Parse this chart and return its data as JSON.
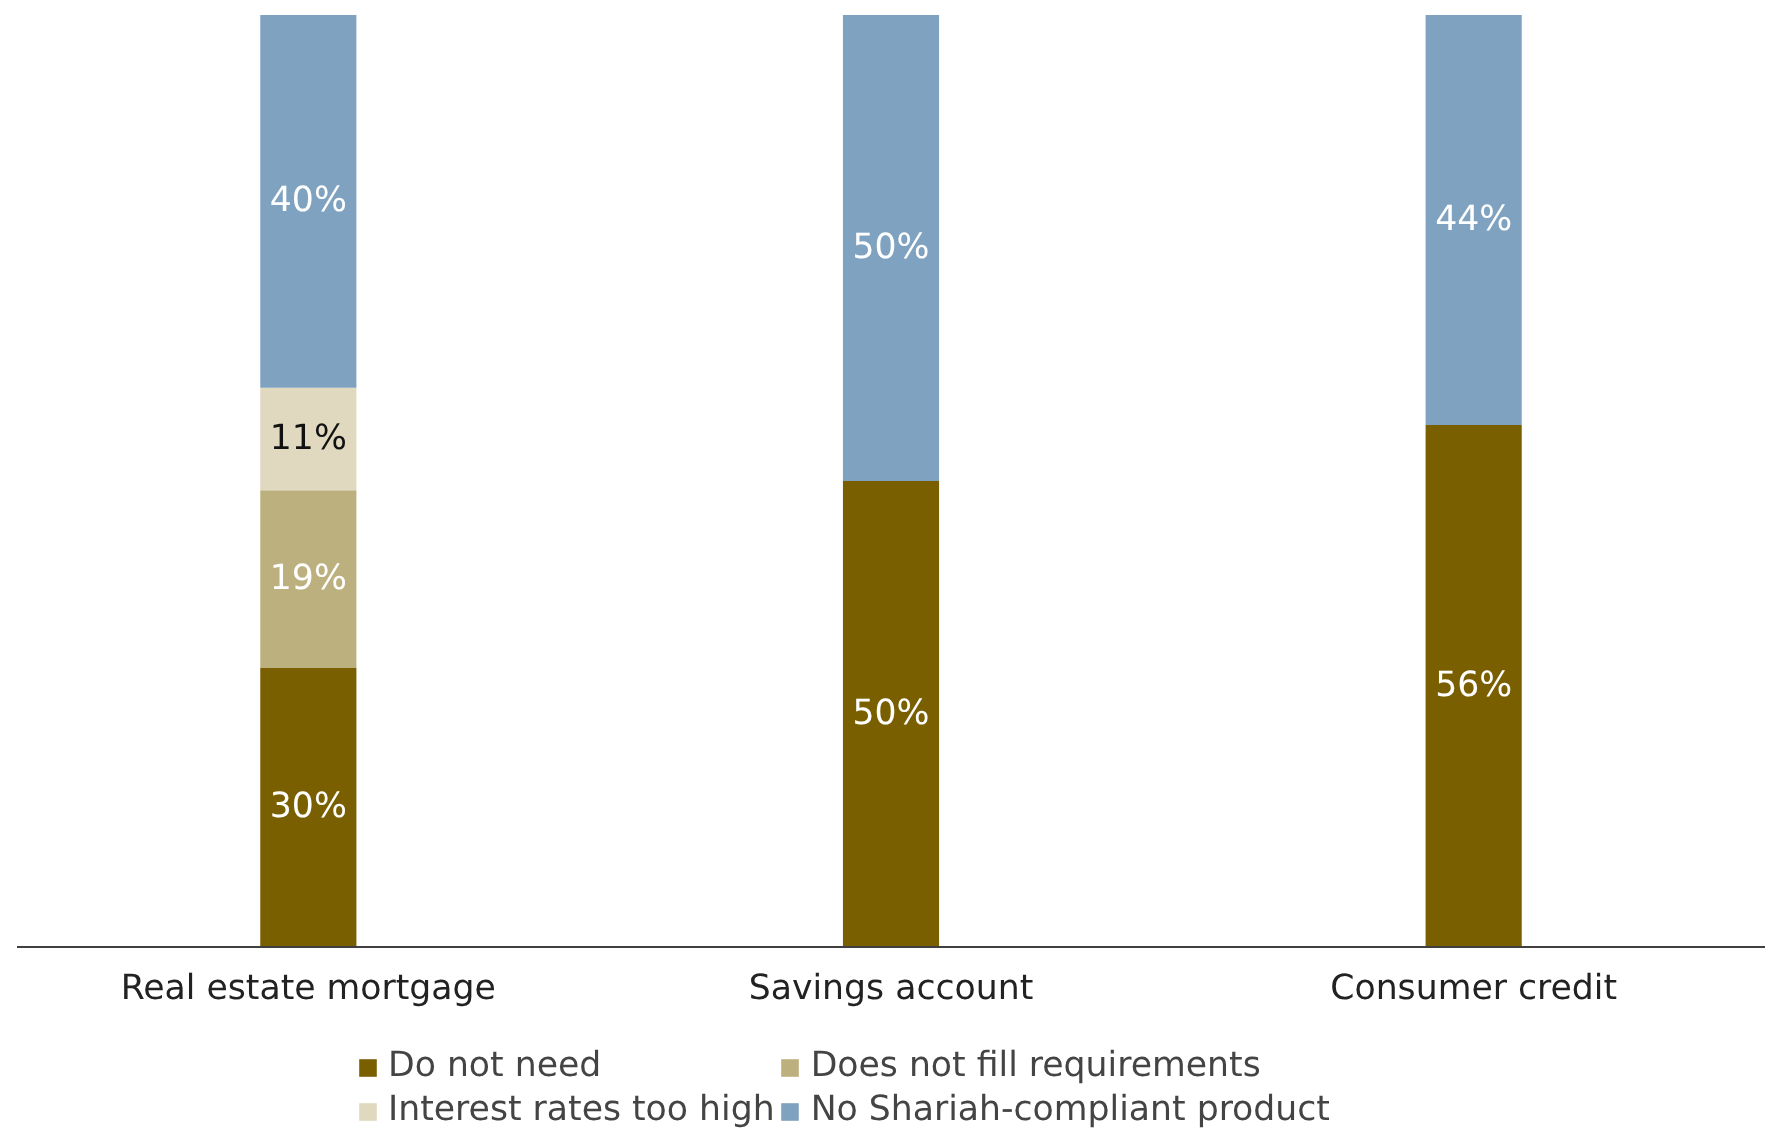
{
  "chart_data": {
    "type": "bar",
    "stacked": true,
    "legend": "bottom",
    "categories": [
      "Real estate mortgage",
      "Savings account",
      "Consumer credit"
    ],
    "series": [
      {
        "name": "Do not need",
        "color": "#7a5f00",
        "values": [
          30,
          50,
          56
        ],
        "value_labels": [
          "30%",
          "50%",
          "56%"
        ]
      },
      {
        "name": "Does not fill requirements",
        "color": "#bcb07f",
        "values": [
          19,
          null,
          null
        ],
        "value_labels": [
          "19%",
          null,
          null
        ]
      },
      {
        "name": "Interest rates too high",
        "color": "#e0d9c0",
        "values": [
          11,
          null,
          null
        ],
        "value_labels": [
          "11%",
          null,
          null
        ]
      },
      {
        "name": "No Shariah-compliant product",
        "color": "#7fa2c0",
        "values": [
          40,
          50,
          44
        ],
        "value_labels": [
          "40%",
          "50%",
          "44%"
        ]
      }
    ]
  }
}
